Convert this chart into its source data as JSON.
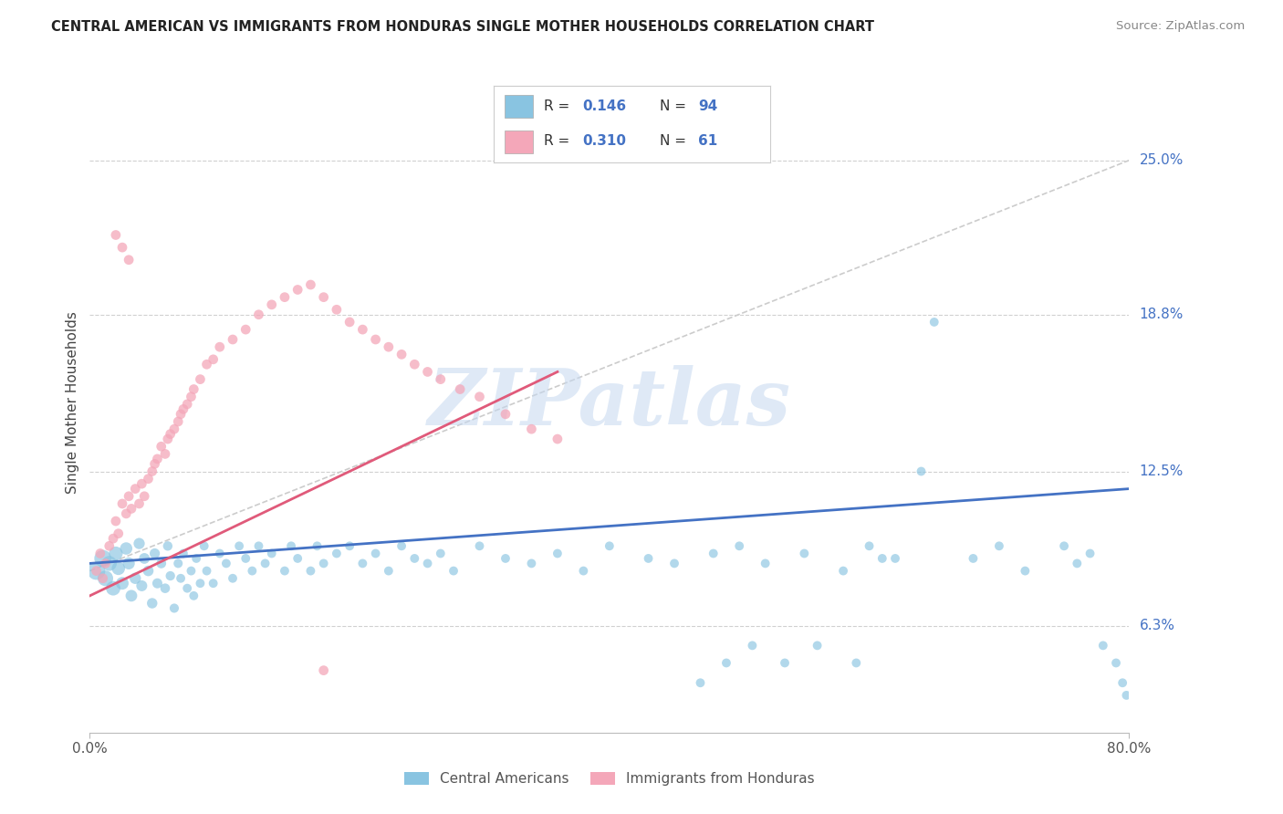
{
  "title": "CENTRAL AMERICAN VS IMMIGRANTS FROM HONDURAS SINGLE MOTHER HOUSEHOLDS CORRELATION CHART",
  "source": "Source: ZipAtlas.com",
  "ylabel": "Single Mother Households",
  "y_tick_labels": [
    "6.3%",
    "12.5%",
    "18.8%",
    "25.0%"
  ],
  "y_tick_values": [
    0.063,
    0.125,
    0.188,
    0.25
  ],
  "xlim": [
    0.0,
    0.8
  ],
  "ylim": [
    0.02,
    0.285
  ],
  "color_blue": "#89c4e1",
  "color_pink": "#f4a7b9",
  "color_blue_text": "#4472c4",
  "watermark": "ZIPatlas",
  "background_color": "#ffffff",
  "grid_color": "#d0d0d0",
  "trend_blue": "#4472c4",
  "trend_pink": "#e05a7a",
  "trend_grey_dashed": "#cccccc",
  "blue_scatter": {
    "x": [
      0.005,
      0.01,
      0.012,
      0.015,
      0.018,
      0.02,
      0.022,
      0.025,
      0.028,
      0.03,
      0.032,
      0.035,
      0.038,
      0.04,
      0.042,
      0.045,
      0.048,
      0.05,
      0.052,
      0.055,
      0.058,
      0.06,
      0.062,
      0.065,
      0.068,
      0.07,
      0.072,
      0.075,
      0.078,
      0.08,
      0.082,
      0.085,
      0.088,
      0.09,
      0.095,
      0.1,
      0.105,
      0.11,
      0.115,
      0.12,
      0.125,
      0.13,
      0.135,
      0.14,
      0.15,
      0.155,
      0.16,
      0.17,
      0.175,
      0.18,
      0.19,
      0.2,
      0.21,
      0.22,
      0.23,
      0.24,
      0.25,
      0.26,
      0.27,
      0.28,
      0.3,
      0.32,
      0.34,
      0.36,
      0.38,
      0.4,
      0.43,
      0.45,
      0.48,
      0.5,
      0.52,
      0.55,
      0.58,
      0.6,
      0.62,
      0.65,
      0.68,
      0.7,
      0.72,
      0.75,
      0.76,
      0.77,
      0.78,
      0.79,
      0.795,
      0.798,
      0.47,
      0.49,
      0.51,
      0.535,
      0.56,
      0.59,
      0.61,
      0.64
    ],
    "y": [
      0.085,
      0.09,
      0.082,
      0.088,
      0.078,
      0.092,
      0.086,
      0.08,
      0.094,
      0.088,
      0.075,
      0.082,
      0.096,
      0.079,
      0.09,
      0.085,
      0.072,
      0.092,
      0.08,
      0.088,
      0.078,
      0.095,
      0.083,
      0.07,
      0.088,
      0.082,
      0.092,
      0.078,
      0.085,
      0.075,
      0.09,
      0.08,
      0.095,
      0.085,
      0.08,
      0.092,
      0.088,
      0.082,
      0.095,
      0.09,
      0.085,
      0.095,
      0.088,
      0.092,
      0.085,
      0.095,
      0.09,
      0.085,
      0.095,
      0.088,
      0.092,
      0.095,
      0.088,
      0.092,
      0.085,
      0.095,
      0.09,
      0.088,
      0.092,
      0.085,
      0.095,
      0.09,
      0.088,
      0.092,
      0.085,
      0.095,
      0.09,
      0.088,
      0.092,
      0.095,
      0.088,
      0.092,
      0.085,
      0.095,
      0.09,
      0.185,
      0.09,
      0.095,
      0.085,
      0.095,
      0.088,
      0.092,
      0.055,
      0.048,
      0.04,
      0.035,
      0.04,
      0.048,
      0.055,
      0.048,
      0.055,
      0.048,
      0.09,
      0.125
    ],
    "sizes": [
      200,
      180,
      150,
      140,
      130,
      120,
      110,
      100,
      95,
      90,
      85,
      80,
      78,
      75,
      72,
      70,
      68,
      65,
      63,
      60,
      58,
      56,
      55,
      53,
      52,
      50,
      50,
      50,
      50,
      50,
      50,
      50,
      50,
      50,
      50,
      50,
      50,
      50,
      50,
      50,
      50,
      50,
      50,
      50,
      50,
      50,
      50,
      50,
      50,
      50,
      50,
      50,
      50,
      50,
      50,
      50,
      50,
      50,
      50,
      50,
      50,
      50,
      50,
      50,
      50,
      50,
      50,
      50,
      50,
      50,
      50,
      50,
      50,
      50,
      50,
      50,
      50,
      50,
      50,
      50,
      50,
      50,
      50,
      50,
      50,
      50,
      50,
      50,
      50,
      50,
      50,
      50,
      50,
      50
    ]
  },
  "pink_scatter": {
    "x": [
      0.005,
      0.008,
      0.01,
      0.012,
      0.015,
      0.018,
      0.02,
      0.022,
      0.025,
      0.028,
      0.03,
      0.032,
      0.035,
      0.038,
      0.04,
      0.042,
      0.045,
      0.048,
      0.05,
      0.052,
      0.055,
      0.058,
      0.06,
      0.062,
      0.065,
      0.068,
      0.07,
      0.072,
      0.075,
      0.078,
      0.08,
      0.085,
      0.09,
      0.095,
      0.1,
      0.11,
      0.12,
      0.13,
      0.14,
      0.15,
      0.16,
      0.17,
      0.18,
      0.19,
      0.2,
      0.21,
      0.22,
      0.23,
      0.24,
      0.25,
      0.26,
      0.27,
      0.285,
      0.3,
      0.32,
      0.34,
      0.36,
      0.02,
      0.025,
      0.03,
      0.18
    ],
    "y": [
      0.085,
      0.092,
      0.082,
      0.088,
      0.095,
      0.098,
      0.105,
      0.1,
      0.112,
      0.108,
      0.115,
      0.11,
      0.118,
      0.112,
      0.12,
      0.115,
      0.122,
      0.125,
      0.128,
      0.13,
      0.135,
      0.132,
      0.138,
      0.14,
      0.142,
      0.145,
      0.148,
      0.15,
      0.152,
      0.155,
      0.158,
      0.162,
      0.168,
      0.17,
      0.175,
      0.178,
      0.182,
      0.188,
      0.192,
      0.195,
      0.198,
      0.2,
      0.195,
      0.19,
      0.185,
      0.182,
      0.178,
      0.175,
      0.172,
      0.168,
      0.165,
      0.162,
      0.158,
      0.155,
      0.148,
      0.142,
      0.138,
      0.22,
      0.215,
      0.21,
      0.045
    ],
    "sizes": [
      60,
      60,
      60,
      60,
      60,
      60,
      60,
      60,
      60,
      60,
      60,
      60,
      60,
      60,
      60,
      60,
      60,
      60,
      60,
      60,
      60,
      60,
      60,
      60,
      60,
      60,
      60,
      60,
      60,
      60,
      60,
      60,
      60,
      60,
      60,
      60,
      60,
      60,
      60,
      60,
      60,
      60,
      60,
      60,
      60,
      60,
      60,
      60,
      60,
      60,
      60,
      60,
      60,
      60,
      60,
      60,
      60,
      60,
      60,
      60,
      60
    ]
  },
  "grey_line": {
    "x0": 0.0,
    "y0": 0.085,
    "x1": 0.8,
    "y1": 0.25
  },
  "blue_line": {
    "x0": 0.0,
    "y0": 0.088,
    "x1": 0.8,
    "y1": 0.118
  },
  "pink_line": {
    "x0": 0.0,
    "y0": 0.075,
    "x1": 0.36,
    "y1": 0.165
  }
}
